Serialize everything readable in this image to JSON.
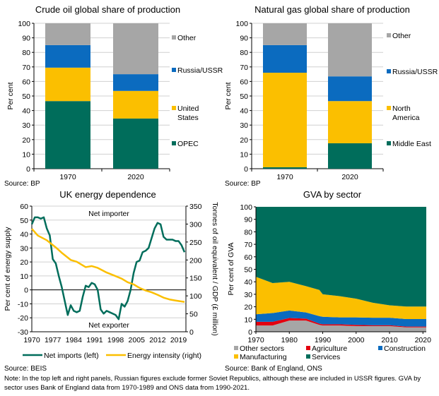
{
  "colors": {
    "opec": "#006d5b",
    "yellow": "#fbbf00",
    "blue": "#0b6bbf",
    "grey": "#a6a6a6",
    "red": "#e3000f"
  },
  "chart_data": [
    {
      "type": "bar",
      "stacked": true,
      "title": "Crude oil global share of production",
      "ylabel": "Per cent",
      "ylim": [
        0,
        100
      ],
      "yticks": [
        0,
        10,
        20,
        30,
        40,
        50,
        60,
        70,
        80,
        90,
        100
      ],
      "categories": [
        "1970",
        "2020"
      ],
      "legend": "right",
      "series": [
        {
          "name": "OPEC",
          "values": [
            46.5,
            34.5
          ]
        },
        {
          "name": "United States",
          "values": [
            23,
            19
          ]
        },
        {
          "name": "Russia/USSR",
          "values": [
            15.5,
            11.5
          ]
        },
        {
          "name": "Other",
          "values": [
            15,
            35
          ]
        }
      ],
      "source": "Source: BP"
    },
    {
      "type": "bar",
      "stacked": true,
      "title": "Natural gas global share of production",
      "ylabel": "Per cent",
      "ylim": [
        0,
        100
      ],
      "yticks": [
        0,
        10,
        20,
        30,
        40,
        50,
        60,
        70,
        80,
        90,
        100
      ],
      "categories": [
        "1970",
        "2020"
      ],
      "legend": "right",
      "series": [
        {
          "name": "Middle East",
          "values": [
            1,
            17.5
          ]
        },
        {
          "name": "North America",
          "values": [
            65,
            29
          ]
        },
        {
          "name": "Russia/USSR",
          "values": [
            19,
            17
          ]
        },
        {
          "name": "Other",
          "values": [
            15,
            36.5
          ]
        }
      ],
      "source": "Source: BP"
    },
    {
      "type": "line",
      "title": "UK energy dependence",
      "ylabel": "Per cent of energy supply",
      "y2label": "Tonnes of oil equivalent / GDP (£ million)",
      "ylim": [
        -30,
        60
      ],
      "y2lim": [
        0,
        350
      ],
      "xlim": [
        1970,
        2021
      ],
      "yticks": [
        -30,
        -20,
        -10,
        0,
        10,
        20,
        30,
        40,
        50,
        60
      ],
      "y2ticks": [
        0,
        50,
        100,
        150,
        200,
        250,
        300,
        350
      ],
      "xticks": [
        1970,
        1977,
        1984,
        1991,
        1998,
        2005,
        2012,
        2019
      ],
      "annotations": [
        "Net importer",
        "Net exporter"
      ],
      "legend": "bottom",
      "series": [
        {
          "name": "Net imports (left)",
          "axis": "left",
          "x": [
            1970,
            1971,
            1972,
            1973,
            1974,
            1975,
            1976,
            1977,
            1978,
            1979,
            1980,
            1981,
            1982,
            1983,
            1984,
            1985,
            1986,
            1987,
            1988,
            1989,
            1990,
            1991,
            1992,
            1993,
            1994,
            1995,
            1996,
            1997,
            1998,
            1999,
            2000,
            2001,
            2002,
            2003,
            2004,
            2005,
            2006,
            2007,
            2008,
            2009,
            2010,
            2011,
            2012,
            2013,
            2014,
            2015,
            2016,
            2017,
            2018,
            2019,
            2020,
            2021
          ],
          "y": [
            47,
            52,
            52,
            51,
            52,
            44,
            39,
            22,
            19,
            10,
            2,
            -8,
            -18,
            -11,
            -15,
            -16,
            -15,
            -5,
            3,
            2,
            5,
            4,
            0,
            -14,
            -17,
            -15,
            -16,
            -17,
            -18,
            -21,
            -10,
            -12,
            -8,
            0,
            12,
            20,
            21,
            27,
            28,
            30,
            37,
            44,
            48,
            47,
            38,
            36,
            36,
            36,
            35,
            35,
            32,
            27
          ]
        },
        {
          "name": "Energy intensity (right)",
          "axis": "right",
          "x": [
            1970,
            1972,
            1975,
            1978,
            1980,
            1983,
            1985,
            1988,
            1990,
            1992,
            1995,
            1998,
            2000,
            2002,
            2004,
            2006,
            2008,
            2010,
            2012,
            2014,
            2016,
            2018,
            2021
          ],
          "y": [
            287,
            268,
            255,
            235,
            220,
            200,
            195,
            180,
            183,
            178,
            165,
            155,
            148,
            138,
            132,
            122,
            115,
            110,
            103,
            95,
            90,
            87,
            83
          ]
        }
      ],
      "source": "Source: BEIS"
    },
    {
      "type": "area",
      "stacked": true,
      "title": "GVA by sector",
      "ylabel": "Per cent of GVA",
      "ylim": [
        0,
        100
      ],
      "xlim": [
        1970,
        2021
      ],
      "yticks": [
        0,
        10,
        20,
        30,
        40,
        50,
        60,
        70,
        80,
        90,
        100
      ],
      "xticks": [
        1970,
        1980,
        1990,
        2000,
        2010,
        2020
      ],
      "legend": "bottom",
      "x": [
        1970,
        1975,
        1980,
        1985,
        1989,
        1990,
        1995,
        2000,
        2005,
        2010,
        2015,
        2021
      ],
      "series": [
        {
          "name": "Other sectors",
          "values": [
            5,
            5,
            9,
            9,
            5.5,
            5,
            5,
            4.5,
            4.5,
            4.5,
            3.5,
            3.5
          ]
        },
        {
          "name": "Agriculture",
          "values": [
            3,
            3,
            2,
            1.5,
            1,
            1,
            1,
            1,
            0.7,
            0.7,
            0.7,
            0.7
          ]
        },
        {
          "name": "Construction",
          "values": [
            6,
            7,
            6,
            5,
            6,
            6,
            5.5,
            6,
            6,
            6,
            6,
            6
          ]
        },
        {
          "name": "Manufacturing",
          "values": [
            30,
            24,
            23,
            21,
            21,
            18,
            17,
            15,
            12,
            10,
            10,
            10
          ]
        },
        {
          "name": "Services",
          "values": [
            56,
            61,
            60,
            63.5,
            66.5,
            70,
            71.5,
            73.5,
            76.8,
            78.8,
            79.8,
            79.8
          ]
        }
      ],
      "source": "Source: Bank of England, ONS"
    }
  ],
  "note": "Note: In the top left and right panels, Russian figures exclude former Soviet Republics, although these are included in USSR figures. GVA by sector uses Bank of England data from 1970-1989 and ONS data from 1990-2021."
}
